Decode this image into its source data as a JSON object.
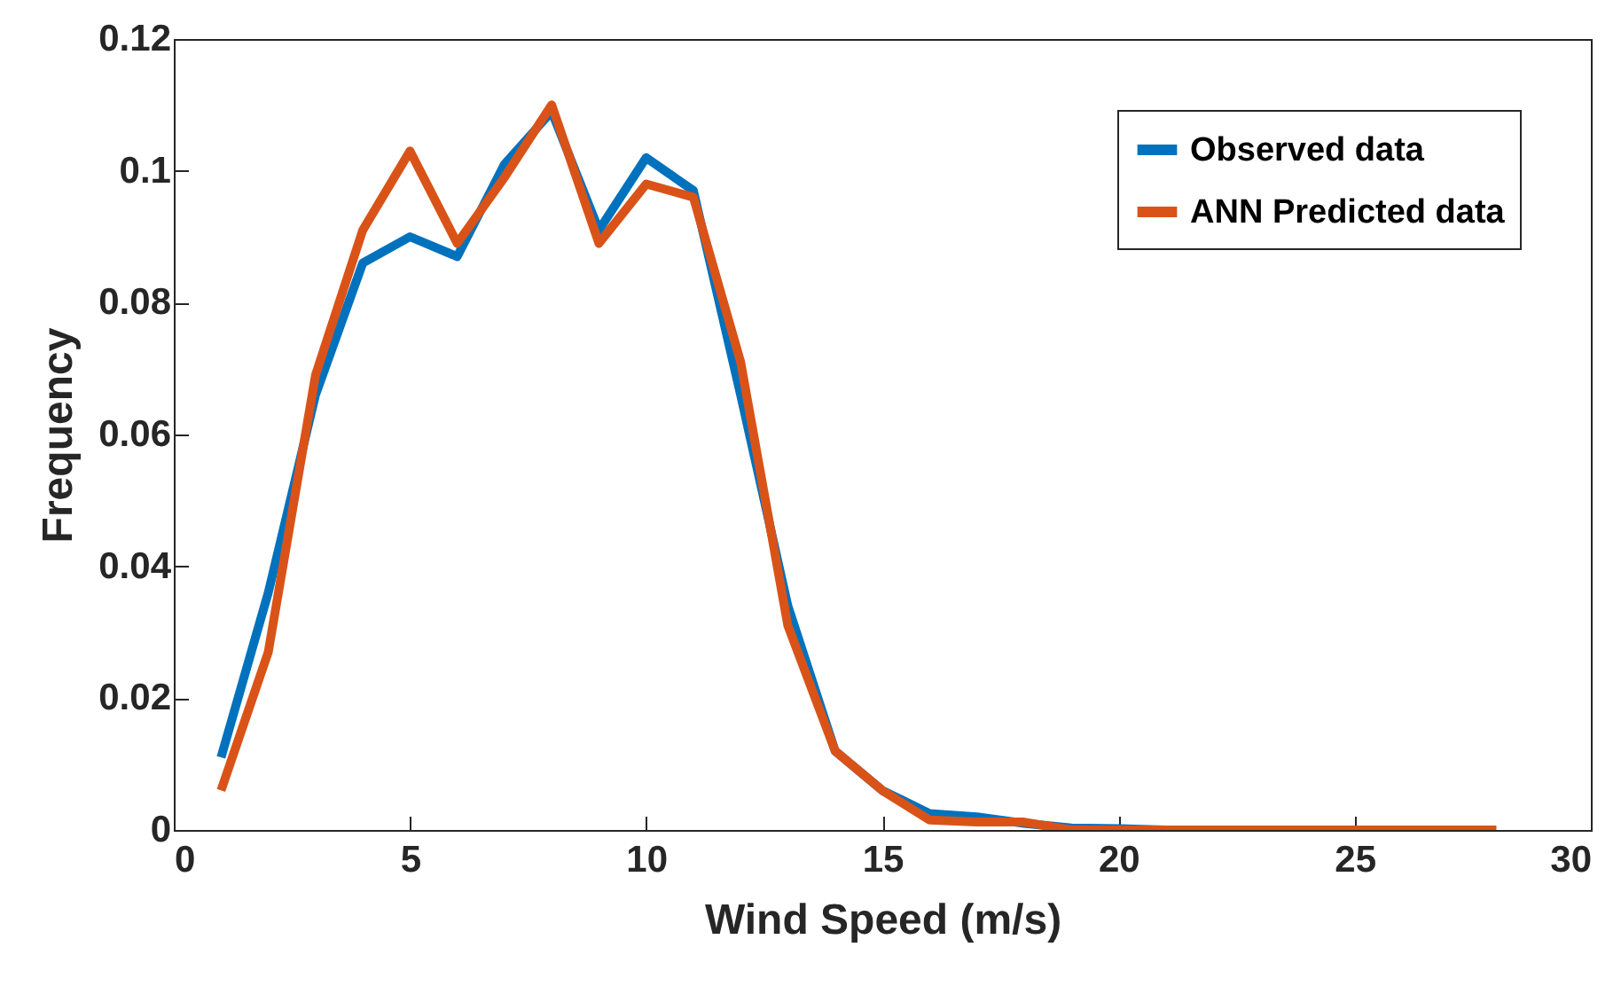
{
  "chart_data": {
    "type": "line",
    "xlabel": "Wind Speed (m/s)",
    "ylabel": "Frequency",
    "x": [
      1,
      2,
      3,
      4,
      5,
      6,
      7,
      8,
      9,
      10,
      11,
      12,
      13,
      14,
      15,
      16,
      17,
      18,
      19,
      20,
      21,
      22,
      23,
      24,
      25,
      26,
      27,
      28
    ],
    "series": [
      {
        "name": "Observed data",
        "color": "#0072bd",
        "values": [
          0.011,
          0.036,
          0.066,
          0.086,
          0.09,
          0.087,
          0.101,
          0.109,
          0.091,
          0.102,
          0.097,
          0.066,
          0.034,
          0.012,
          0.006,
          0.0025,
          0.002,
          0.001,
          0.0003,
          0.0002,
          0,
          0,
          null,
          null,
          null,
          null,
          null,
          null
        ]
      },
      {
        "name": "ANN Predicted data",
        "color": "#d95319",
        "values": [
          0.006,
          0.027,
          0.069,
          0.091,
          0.103,
          0.089,
          0.099,
          0.11,
          0.089,
          0.098,
          0.096,
          0.071,
          0.031,
          0.012,
          0.006,
          0.0015,
          0.0012,
          0.0012,
          0,
          0,
          0,
          0,
          0,
          0,
          0,
          0,
          0,
          0
        ]
      }
    ],
    "xlim": [
      0,
      30
    ],
    "xticks": [
      0,
      5,
      10,
      15,
      20,
      25,
      30
    ],
    "ylim": [
      0,
      0.12
    ],
    "yticks": [
      0,
      0.02,
      0.04,
      0.06,
      0.08,
      0.1,
      0.12
    ],
    "grid": false,
    "legend": "top right",
    "marker": "none",
    "line_style": "solid"
  }
}
